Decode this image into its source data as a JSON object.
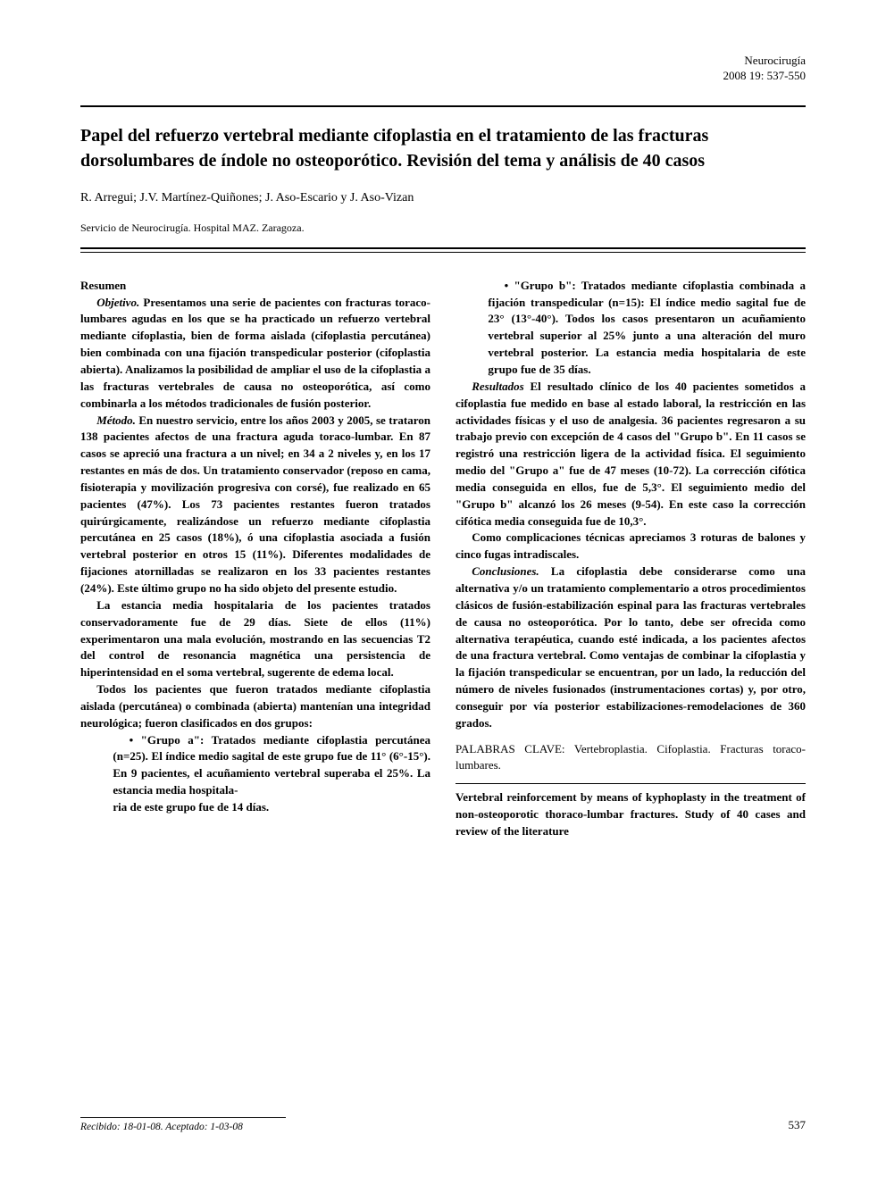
{
  "journal": {
    "name": "Neurocirugía",
    "citation": "2008 19: 537-550"
  },
  "title": "Papel del refuerzo vertebral mediante cifoplastia en el tratamiento de las fracturas dorsolumbares de índole no osteoporótico. Revisión del tema y análisis de 40 casos",
  "authors": "R. Arregui; J.V. Martínez-Quiñones; J. Aso-Escario y J. Aso-Vizan",
  "affiliation": "Servicio de Neurocirugía. Hospital MAZ. Zaragoza.",
  "abstract": {
    "heading": "Resumen",
    "objetivo_label": "Objetivo.",
    "objetivo_text": " Presentamos una serie de pacientes con fracturas toraco-lumbares agudas en los que se ha practicado un refuerzo vertebral mediante cifoplastia, bien de forma aislada (cifoplastia percutánea) bien combinada con una fijación transpedicular posterior (cifoplastia abierta). Analizamos la posibilidad de ampliar el uso de la cifoplastia a las fracturas vertebrales de causa no osteoporótica, así como combinarla a los métodos tradicionales de fusión posterior.",
    "metodo_label": "Método.",
    "metodo_text": " En nuestro servicio, entre los años 2003 y 2005, se trataron 138 pacientes afectos de una fractura aguda toraco-lumbar. En 87 casos se apreció una fractura a un nivel; en 34 a 2 niveles y, en los 17 restantes en más de dos. Un tratamiento conservador (reposo en cama, fisioterapia y movilización progresiva con corsé), fue realizado en 65 pacientes (47%). Los 73 pacientes restantes fueron tratados quirúrgicamente, realizándose un refuerzo mediante cifoplastia percutánea en 25 casos (18%), ó una cifoplastia asociada a fusión vertebral posterior en otros 15 (11%). Diferentes modalidades de fijaciones atornilladas se realizaron en los 33 pacientes restantes (24%). Este último grupo no ha sido objeto del presente estudio.",
    "metodo_p2": "La estancia media hospitalaria de los pacientes tratados conservadoramente fue de 29 días. Siete de ellos (11%) experimentaron una mala evolución, mostrando en las secuencias T2 del control de resonancia magnética una persistencia de hiperintensidad en el soma vertebral, sugerente de edema local.",
    "metodo_p3": "Todos los pacientes que fueron tratados mediante cifoplastia aislada (percutánea) o combinada (abierta) mantenían una integridad neurológica; fueron clasificados en dos grupos:",
    "grupo_a": "• \"Grupo a\": Tratados mediante cifoplastia percutánea (n=25). El índice medio sagital de este grupo fue de 11° (6°-15°). En 9 pacientes, el acuñamiento vertebral superaba el 25%. La estancia media hospitala-",
    "grupo_a_cont": "ria de este grupo fue de 14 días.",
    "grupo_b": "• \"Grupo b\": Tratados mediante cifoplastia combinada a fijación transpedicular (n=15): El índice medio sagital fue de 23° (13°-40°). Todos los casos presentaron un acuñamiento vertebral superior al 25% junto a una alteración del muro vertebral posterior. La estancia media hospitalaria de este grupo fue de 35 días.",
    "resultados_label": "Resultados",
    "resultados_text": " El resultado clínico de los 40 pacientes sometidos a cifoplastia fue medido en base al estado laboral, la restricción en las actividades físicas y el uso de analgesia. 36 pacientes regresaron a su trabajo previo con excepción de 4 casos del \"Grupo b\". En 11 casos se registró una restricción ligera de la actividad física. El seguimiento medio del \"Grupo a\" fue de 47 meses (10-72). La corrección cifótica media conseguida en ellos, fue de 5,3°. El seguimiento medio del \"Grupo b\" alcanzó los 26 meses (9-54). En este caso la corrección cifótica media conseguida fue de 10,3°.",
    "resultados_p2": "Como complicaciones técnicas apreciamos 3 roturas de balones y cinco fugas intradiscales.",
    "conclusiones_label": "Conclusiones.",
    "conclusiones_text": " La cifoplastia debe considerarse como una alternativa y/o un tratamiento complementario a otros procedimientos clásicos de fusión-estabilización espinal para las fracturas vertebrales de causa no osteoporótica. Por lo tanto, debe ser ofrecida como alternativa terapéutica, cuando esté indicada, a los pacientes afectos de una fractura vertebral. Como ventajas de combinar la cifoplastia y la fijación transpedicular se encuentran, por un lado, la reducción del número de niveles fusionados (instrumentaciones cortas) y, por otro, conseguir por vía posterior estabilizaciones-remodelaciones de 360 grados."
  },
  "keywords_label": "PALABRAS CLAVE: ",
  "keywords_text": "Vertebroplastia. Cifoplastia. Fracturas toraco-lumbares.",
  "english_title": "Vertebral reinforcement by means of kyphoplasty in the treatment of non-osteoporotic thoraco-lumbar fractures. Study of 40 cases and review of the literature",
  "recibido": "Recibido: 18-01-08. Aceptado: 1-03-08",
  "page_number": "537"
}
